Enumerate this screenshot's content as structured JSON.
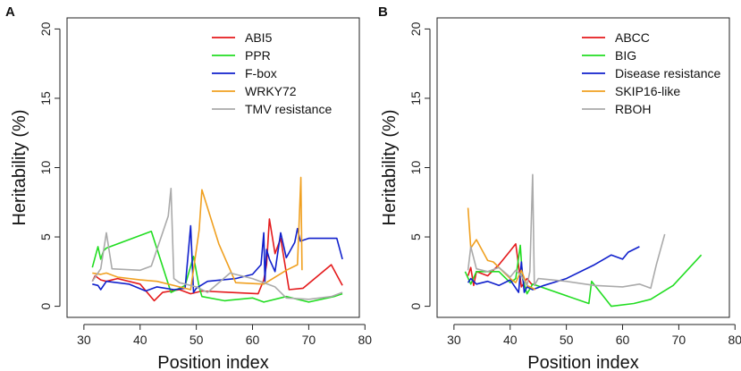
{
  "chart_data": [
    {
      "panel": "A",
      "type": "line",
      "xlabel": "Position index",
      "ylabel": "Heritability (%)",
      "xlim": [
        27,
        79
      ],
      "ylim": [
        -0.8,
        20.8
      ],
      "xticks": [
        30,
        40,
        50,
        60,
        70,
        80
      ],
      "yticks": [
        0,
        5,
        10,
        15,
        20
      ],
      "legend_position": "top-right",
      "series": [
        {
          "name": "ABI5",
          "color": "#e41a1c",
          "x": [
            31.5,
            32,
            33,
            34,
            36,
            40,
            42.5,
            44,
            47,
            49,
            51,
            56,
            61,
            62,
            62.5,
            63,
            64,
            65,
            66.5,
            69,
            74,
            76
          ],
          "y": [
            1.8,
            2.2,
            1.9,
            1.8,
            2.0,
            1.6,
            0.4,
            1.0,
            1.2,
            0.9,
            1.1,
            1.0,
            0.9,
            1.9,
            3.0,
            6.3,
            3.8,
            4.9,
            1.2,
            1.3,
            3.0,
            1.5
          ]
        },
        {
          "name": "PPR",
          "color": "#22dd22",
          "x": [
            31.5,
            32.5,
            33,
            33.5,
            34,
            42,
            45.5,
            48,
            49.5,
            50.5,
            51,
            55,
            60,
            62,
            66,
            70,
            74.5,
            76
          ],
          "y": [
            2.8,
            4.3,
            3.4,
            4.0,
            4.2,
            5.4,
            1.0,
            1.5,
            3.6,
            1.4,
            0.7,
            0.4,
            0.6,
            0.3,
            0.7,
            0.3,
            0.7,
            0.9
          ]
        },
        {
          "name": "F-box",
          "color": "#1020cc",
          "x": [
            31.5,
            32.5,
            33,
            34,
            38,
            41,
            43,
            46,
            48,
            49,
            49.5,
            50,
            52,
            57,
            60,
            61.5,
            62,
            62.2,
            62.5,
            63,
            64,
            65,
            66,
            67.5,
            68,
            68.5,
            70,
            75,
            76
          ],
          "y": [
            1.6,
            1.5,
            1.2,
            1.8,
            1.6,
            1.1,
            1.4,
            1.2,
            1.3,
            5.8,
            1.0,
            1.3,
            1.8,
            2.0,
            2.3,
            3.0,
            5.3,
            1.8,
            4.1,
            3.4,
            2.5,
            5.3,
            3.5,
            4.6,
            5.6,
            4.7,
            4.9,
            4.9,
            3.4
          ]
        },
        {
          "name": "WRKY72",
          "color": "#f0a020",
          "x": [
            31.5,
            33,
            34,
            36,
            40,
            43,
            47,
            49,
            50.5,
            51,
            54,
            57,
            62,
            66,
            68,
            68.6,
            68.8
          ],
          "y": [
            2.4,
            2.3,
            2.4,
            2.1,
            1.9,
            1.8,
            1.4,
            1.2,
            5.5,
            8.4,
            4.5,
            1.7,
            1.6,
            2.6,
            3.0,
            9.3,
            2.6
          ]
        },
        {
          "name": "TMV resistance",
          "color": "#aaaaaa",
          "x": [
            31.5,
            33,
            34,
            35,
            40,
            42,
            45,
            45.5,
            46,
            47,
            50,
            52,
            56,
            60,
            62,
            64,
            66,
            70,
            74,
            76
          ],
          "y": [
            1.8,
            2.7,
            5.3,
            2.7,
            2.6,
            2.9,
            6.5,
            8.5,
            2.0,
            1.7,
            1.4,
            1.0,
            2.4,
            2.0,
            1.7,
            1.4,
            0.6,
            0.5,
            0.7,
            1.0
          ]
        }
      ]
    },
    {
      "panel": "B",
      "type": "line",
      "xlabel": "Position index",
      "ylabel": "Heritability (%)",
      "xlim": [
        27,
        79
      ],
      "ylim": [
        -0.8,
        20.8
      ],
      "xticks": [
        30,
        40,
        50,
        60,
        70,
        80
      ],
      "yticks": [
        0,
        5,
        10,
        15,
        20
      ],
      "legend_position": "top-right",
      "series": [
        {
          "name": "ABCC",
          "color": "#e41a1c",
          "x": [
            32.5,
            33,
            33.5,
            34,
            36,
            38,
            40,
            41,
            42,
            43,
            44
          ],
          "y": [
            2.2,
            2.8,
            1.5,
            2.5,
            2.2,
            3.0,
            4.0,
            4.5,
            1.4,
            2.0,
            1.5
          ]
        },
        {
          "name": "BIG",
          "color": "#22dd22",
          "x": [
            32,
            33,
            34,
            38,
            40,
            41,
            41.8,
            42.2,
            43,
            44,
            54,
            54.5,
            58,
            62,
            65,
            67,
            69,
            74
          ],
          "y": [
            2.5,
            1.6,
            2.5,
            2.5,
            1.7,
            2.0,
            4.4,
            2.0,
            0.9,
            1.6,
            0.2,
            1.8,
            0.0,
            0.2,
            0.5,
            1.0,
            1.5,
            3.7
          ]
        },
        {
          "name": "Disease resistance",
          "color": "#1020cc",
          "x": [
            32.5,
            33,
            34,
            36,
            38,
            40,
            41.5,
            42,
            42.5,
            43,
            44,
            46,
            50,
            55,
            58,
            60,
            61,
            63
          ],
          "y": [
            1.7,
            2.0,
            1.6,
            1.8,
            1.5,
            1.9,
            1.0,
            3.2,
            1.0,
            1.4,
            1.2,
            1.5,
            2.0,
            3.0,
            3.7,
            3.4,
            3.9,
            4.3
          ]
        },
        {
          "name": "SKIP16-like",
          "color": "#f0a020",
          "x": [
            32.5,
            33,
            34,
            36,
            37,
            40,
            41,
            42,
            43,
            44.5
          ],
          "y": [
            7.1,
            4.2,
            4.8,
            3.3,
            3.2,
            2.0,
            1.7,
            2.6,
            1.5,
            1.2
          ]
        },
        {
          "name": "RBOH",
          "color": "#aaaaaa",
          "x": [
            32.5,
            33,
            34,
            36,
            38,
            40,
            41,
            42,
            43,
            43.5,
            44,
            44.3,
            45,
            50,
            55,
            60,
            63,
            65,
            66,
            67.5
          ],
          "y": [
            2.6,
            4.3,
            2.7,
            2.5,
            2.8,
            2.1,
            2.6,
            2.2,
            1.5,
            2.5,
            9.5,
            1.5,
            2.0,
            1.8,
            1.5,
            1.4,
            1.6,
            1.3,
            3.0,
            5.2
          ]
        }
      ]
    }
  ]
}
